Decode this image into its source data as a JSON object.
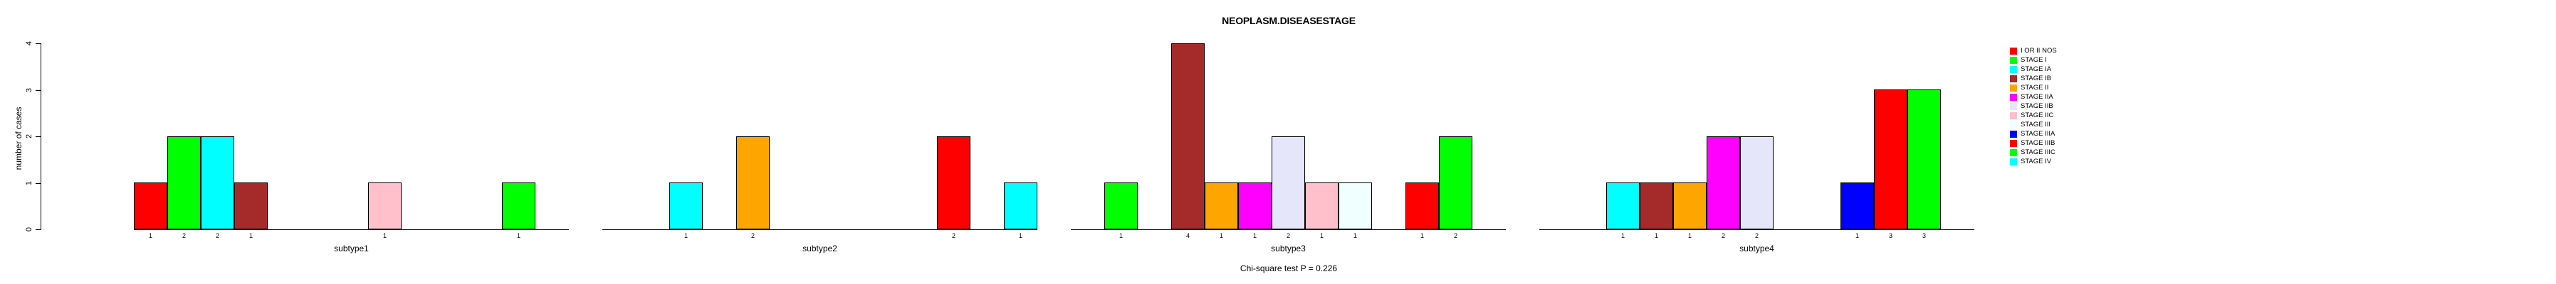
{
  "title": "NEOPLASM.DISEASESTAGE",
  "subtitle": "Chi-square test P = 0.226",
  "chart_data": {
    "type": "bar",
    "title": "NEOPLASM.DISEASESTAGE",
    "subtitle": "Chi-square test P = 0.226",
    "xlabel": "",
    "ylabel": "number of cases",
    "ylim": [
      0,
      4
    ],
    "yticks": [
      0,
      1,
      2,
      3,
      4
    ],
    "grid": false,
    "legend_position": "right",
    "bar_border_color": "#000000",
    "stages": [
      {
        "label": "I OR II NOS",
        "color": "#FF0000"
      },
      {
        "label": "STAGE I",
        "color": "#00FF00"
      },
      {
        "label": "STAGE IA",
        "color": "#00FFFF"
      },
      {
        "label": "STAGE IB",
        "color": "#A52A2A"
      },
      {
        "label": "STAGE II",
        "color": "#FFA500"
      },
      {
        "label": "STAGE IIA",
        "color": "#FF00FF"
      },
      {
        "label": "STAGE IIB",
        "color": "#E6E6FA"
      },
      {
        "label": "STAGE IIC",
        "color": "#FFC0CB"
      },
      {
        "label": "STAGE III",
        "color": "#F0FFFF"
      },
      {
        "label": "STAGE IIIA",
        "color": "#0000FF"
      },
      {
        "label": "STAGE IIIB",
        "color": "#FF0000"
      },
      {
        "label": "STAGE IIIC",
        "color": "#00FF00"
      },
      {
        "label": "STAGE IV",
        "color": "#00FFFF"
      }
    ],
    "panels": [
      {
        "label": "subtype1",
        "values": [
          1,
          2,
          2,
          1,
          0,
          0,
          0,
          1,
          0,
          0,
          0,
          1,
          0
        ]
      },
      {
        "label": "subtype2",
        "values": [
          0,
          0,
          1,
          0,
          2,
          0,
          0,
          0,
          0,
          0,
          2,
          0,
          1
        ]
      },
      {
        "label": "subtype3",
        "values": [
          0,
          1,
          0,
          4,
          1,
          1,
          2,
          1,
          1,
          0,
          1,
          2,
          0
        ]
      },
      {
        "label": "subtype4",
        "values": [
          0,
          0,
          1,
          1,
          1,
          2,
          2,
          0,
          0,
          1,
          3,
          3,
          0
        ]
      }
    ],
    "bar_value_labels_shown": true
  }
}
